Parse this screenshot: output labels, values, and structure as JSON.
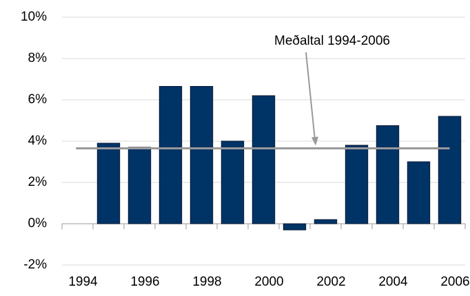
{
  "chart_data": {
    "type": "bar",
    "categories": [
      "1994",
      null,
      "1996",
      null,
      "1998",
      null,
      "2000",
      null,
      "2002",
      null,
      "2004",
      null,
      "2006"
    ],
    "values": [
      null,
      3.9,
      3.7,
      6.65,
      6.65,
      4.0,
      6.2,
      -0.3,
      0.2,
      3.8,
      4.75,
      3.0,
      5.2
    ],
    "color": "#003366",
    "ylim": [
      -2,
      10
    ],
    "yticks": [
      {
        "value": -2,
        "label": "-2%"
      },
      {
        "value": 0,
        "label": "0%"
      },
      {
        "value": 2,
        "label": "2%"
      },
      {
        "value": 4,
        "label": "4%"
      },
      {
        "value": 6,
        "label": "6%"
      },
      {
        "value": 8,
        "label": "8%"
      },
      {
        "value": 10,
        "label": "10%"
      }
    ],
    "grid": true,
    "average": {
      "label": "Meðaltal 1994-2006",
      "value": 3.65,
      "color": "#999999"
    }
  }
}
